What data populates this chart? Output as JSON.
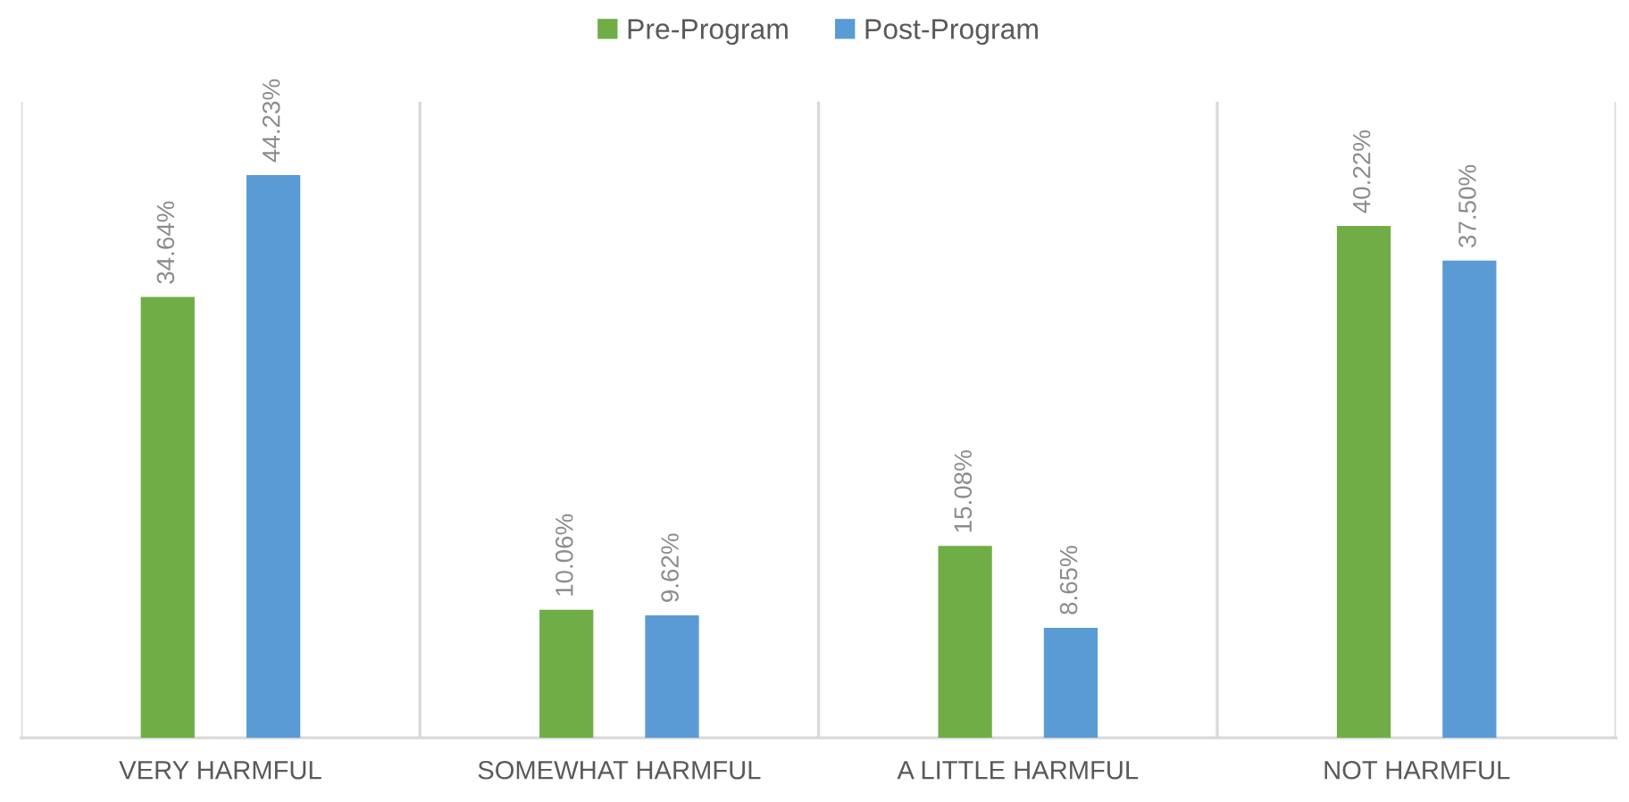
{
  "chart_data": {
    "type": "bar",
    "categories": [
      "VERY HARMFUL",
      "SOMEWHAT HARMFUL",
      "A LITTLE HARMFUL",
      "NOT HARMFUL"
    ],
    "series": [
      {
        "name": "Pre-Program",
        "color": "#70ad47",
        "values": [
          34.64,
          10.06,
          15.08,
          40.22
        ],
        "value_labels": [
          "34.64%",
          "10.06%",
          "15.08%",
          "40.22%"
        ]
      },
      {
        "name": "Post-Program",
        "color": "#5b9bd5",
        "values": [
          44.23,
          9.62,
          8.65,
          37.5
        ],
        "value_labels": [
          "44.23%",
          "9.62%",
          "8.65%",
          "37.50%"
        ]
      }
    ],
    "grid": "x",
    "legend": "top",
    "tick_labels": "x"
  }
}
